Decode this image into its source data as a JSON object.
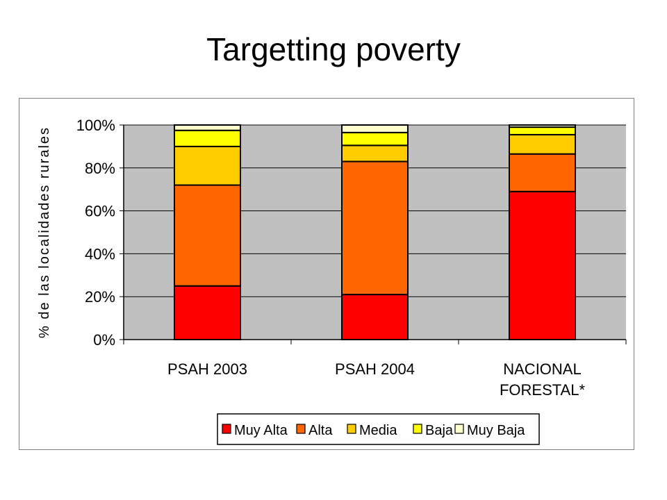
{
  "slide": {
    "title": "Targetting poverty"
  },
  "chart_data": {
    "type": "bar",
    "stacked": true,
    "normalized_percent": true,
    "title": "",
    "ylabel": "% de las localidades rurales",
    "xlabel": "",
    "ylim": [
      0,
      100
    ],
    "yticks": [
      0,
      20,
      40,
      60,
      80,
      100
    ],
    "ytick_labels": [
      "0%",
      "20%",
      "40%",
      "60%",
      "80%",
      "100%"
    ],
    "categories": [
      [
        "PSAH 2003"
      ],
      [
        "PSAH 2004"
      ],
      [
        "NACIONAL",
        "FORESTAL*"
      ]
    ],
    "series": [
      {
        "name": "Muy Alta",
        "color": "#ff0000",
        "values": [
          25,
          21,
          69
        ]
      },
      {
        "name": "Alta",
        "color": "#ff6600",
        "values": [
          47,
          62,
          17.5
        ]
      },
      {
        "name": "Media",
        "color": "#ffcc00",
        "values": [
          18,
          7.5,
          9
        ]
      },
      {
        "name": "Baja",
        "color": "#ffff00",
        "values": [
          7.5,
          6,
          3.5
        ]
      },
      {
        "name": "Muy Baja",
        "color": "#ffffcc",
        "values": [
          2.5,
          3.5,
          1
        ]
      }
    ],
    "plot_background": "#c0c0c0",
    "gridlines": true,
    "legend_position": "bottom"
  }
}
